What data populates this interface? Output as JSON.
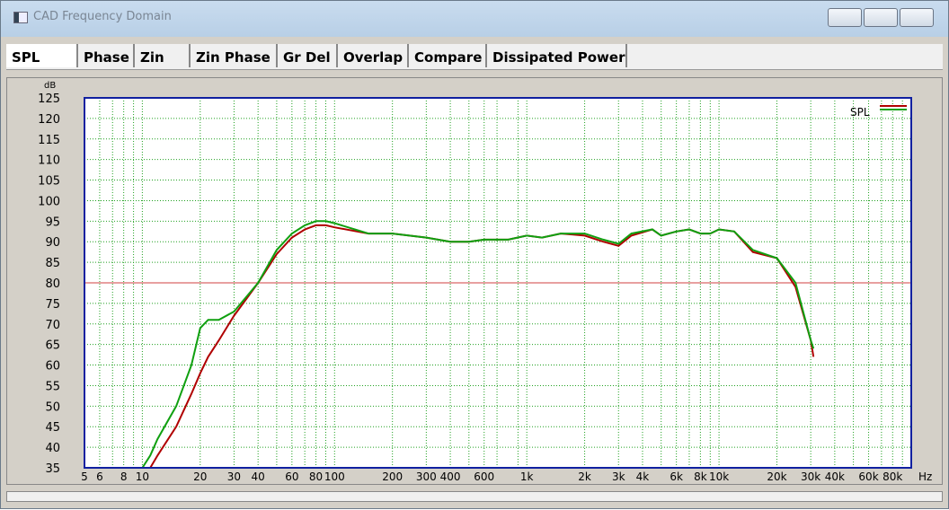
{
  "window": {
    "title": "CAD Frequency Domain"
  },
  "tabs": [
    "SPL",
    "Phase",
    "Zin",
    "Zin Phase",
    "Gr Del",
    "Overlap",
    "Compare",
    "Dissipated Power"
  ],
  "chart_data": {
    "type": "line",
    "x_scale": "log",
    "y_label": "dB",
    "x_label": "Hz",
    "grid": true,
    "legend": "top-right",
    "x": [
      5,
      10,
      11,
      12,
      15,
      18,
      20,
      22,
      25,
      30,
      40,
      50,
      60,
      70,
      80,
      90,
      100,
      150,
      200,
      300,
      400,
      500,
      600,
      800,
      1000,
      1200,
      1500,
      2000,
      2500,
      3000,
      3500,
      4500,
      5000,
      6000,
      7000,
      8000,
      9000,
      10000,
      12000,
      15000,
      20000,
      25000,
      30000,
      31000
    ],
    "series": [
      {
        "name": "SPL",
        "color": "#b00000",
        "values": [
          35,
          35,
          35,
          38,
          45,
          53,
          58,
          62,
          66,
          72,
          80,
          87,
          91,
          93,
          94,
          94,
          93.5,
          92,
          92,
          91,
          90,
          90,
          90.5,
          90.5,
          91.5,
          91,
          92,
          91.5,
          90,
          89,
          91.5,
          93,
          91.5,
          92.5,
          93,
          92,
          92,
          93,
          92.5,
          87.5,
          86,
          79,
          66,
          62
        ]
      },
      {
        "color": "#10a010",
        "values": [
          35,
          35,
          38,
          42,
          50,
          60,
          69,
          71,
          71,
          73,
          80,
          88,
          92,
          94,
          95,
          95,
          94.5,
          92,
          92,
          91,
          90,
          90,
          90.5,
          90.5,
          91.5,
          91,
          92,
          92,
          90.5,
          89.5,
          92,
          93,
          91.5,
          92.5,
          93,
          92,
          92,
          93,
          92.5,
          88,
          86,
          80,
          66,
          64
        ]
      }
    ],
    "reference_line": {
      "value": 80,
      "color": "#d04040"
    },
    "xlim": [
      5,
      100000
    ],
    "ylim": [
      35,
      125
    ],
    "xticks": [
      5,
      6,
      8,
      10,
      20,
      30,
      40,
      60,
      80,
      100,
      200,
      300,
      400,
      600,
      {
        "value": 1000,
        "label": "1k"
      },
      {
        "value": 2000,
        "label": "2k"
      },
      {
        "value": 3000,
        "label": "3k"
      },
      {
        "value": 4000,
        "label": "4k"
      },
      {
        "value": 6000,
        "label": "6k"
      },
      {
        "value": 8000,
        "label": "8k"
      },
      {
        "value": 10000,
        "label": "10k"
      },
      {
        "value": 20000,
        "label": "20k"
      },
      {
        "value": 30000,
        "label": "30k"
      },
      {
        "value": 40000,
        "label": "40k"
      },
      {
        "value": 60000,
        "label": "60k"
      },
      {
        "value": 80000,
        "label": "80k"
      }
    ],
    "xminor": [
      7,
      9,
      50,
      70,
      90,
      500,
      700,
      900,
      5000,
      7000,
      9000,
      50000,
      70000,
      90000
    ],
    "yticks": [
      35,
      40,
      45,
      50,
      55,
      60,
      65,
      70,
      75,
      80,
      85,
      90,
      95,
      100,
      105,
      110,
      115,
      120,
      125
    ]
  }
}
